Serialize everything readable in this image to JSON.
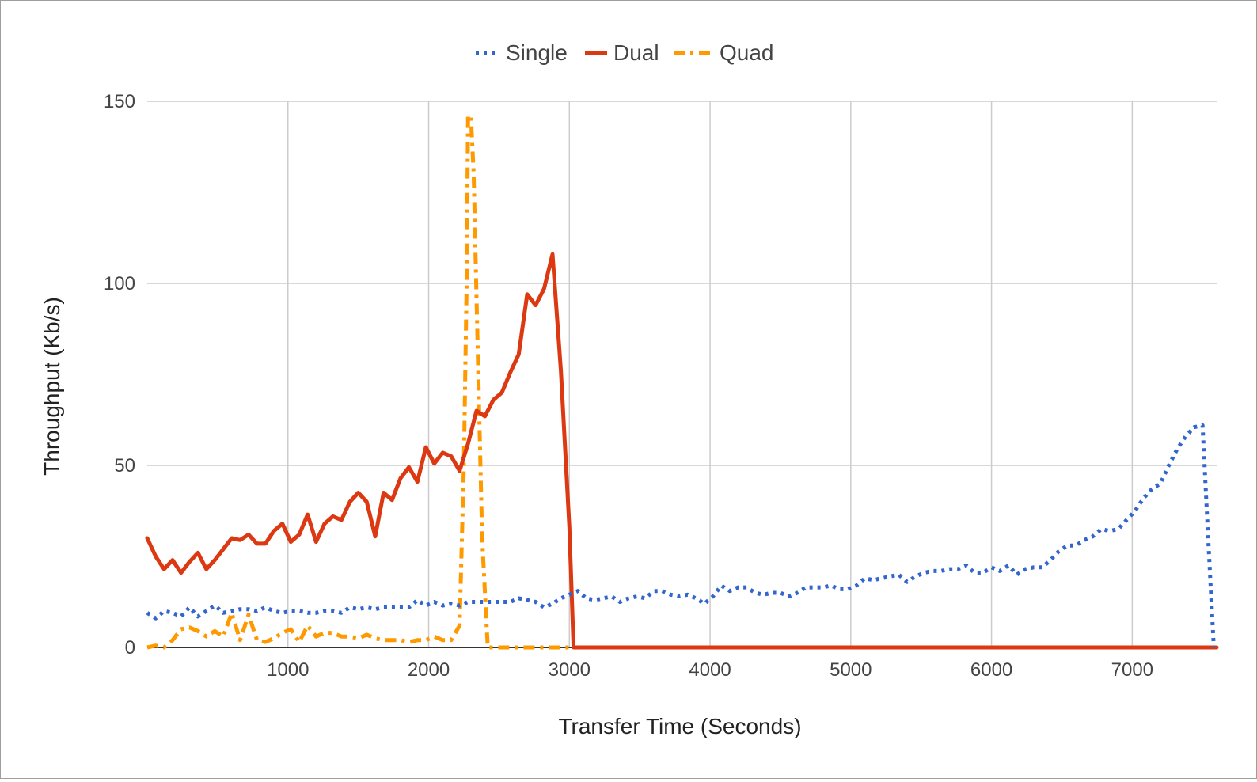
{
  "chart_data": {
    "type": "line",
    "title": "",
    "xlabel": "Transfer Time (Seconds)",
    "ylabel": "Throughput (Kb/s)",
    "xlim": [
      0,
      7600
    ],
    "ylim": [
      0,
      150
    ],
    "x_ticks": [
      1000,
      2000,
      3000,
      4000,
      5000,
      6000,
      7000
    ],
    "x_tick_labels": [
      "1000",
      "2000",
      "3000",
      "4000",
      "5000",
      "6000",
      "7000"
    ],
    "y_ticks": [
      0,
      50,
      100,
      150
    ],
    "y_tick_labels": [
      "0",
      "50",
      "100",
      "150"
    ],
    "grid": true,
    "legend_position": "top",
    "series": [
      {
        "name": "Single",
        "color": "#3366cc",
        "style": "dotted",
        "points": [
          [
            0,
            9.5
          ],
          [
            60,
            8
          ],
          [
            120,
            10
          ],
          [
            180,
            9.5
          ],
          [
            240,
            8.5
          ],
          [
            300,
            11
          ],
          [
            360,
            8.5
          ],
          [
            420,
            10
          ],
          [
            480,
            11.5
          ],
          [
            540,
            9.5
          ],
          [
            600,
            10
          ],
          [
            660,
            10.5
          ],
          [
            720,
            10.5
          ],
          [
            780,
            10
          ],
          [
            840,
            11
          ],
          [
            900,
            10
          ],
          [
            960,
            9.5
          ],
          [
            1020,
            10
          ],
          [
            1080,
            10
          ],
          [
            1140,
            9.5
          ],
          [
            1200,
            9.5
          ],
          [
            1260,
            10
          ],
          [
            1320,
            10
          ],
          [
            1380,
            9.5
          ],
          [
            1440,
            11
          ],
          [
            1500,
            10.5
          ],
          [
            1560,
            11
          ],
          [
            1620,
            10.5
          ],
          [
            1680,
            11
          ],
          [
            1740,
            11
          ],
          [
            1800,
            11
          ],
          [
            1860,
            11
          ],
          [
            1920,
            13
          ],
          [
            1980,
            11.5
          ],
          [
            2040,
            12.5
          ],
          [
            2100,
            11.5
          ],
          [
            2160,
            12
          ],
          [
            2220,
            11.5
          ],
          [
            2280,
            12.5
          ],
          [
            2340,
            12.5
          ],
          [
            2400,
            12.5
          ],
          [
            2460,
            12.5
          ],
          [
            2520,
            12.5
          ],
          [
            2580,
            12.5
          ],
          [
            2640,
            13.5
          ],
          [
            2700,
            13
          ],
          [
            2760,
            12.5
          ],
          [
            2820,
            11
          ],
          [
            2880,
            12
          ],
          [
            2940,
            13.5
          ],
          [
            3000,
            14.5
          ],
          [
            3060,
            15.5
          ],
          [
            3120,
            13.5
          ],
          [
            3180,
            13
          ],
          [
            3240,
            13.5
          ],
          [
            3300,
            14
          ],
          [
            3360,
            12.5
          ],
          [
            3420,
            13.5
          ],
          [
            3480,
            14
          ],
          [
            3540,
            13.5
          ],
          [
            3600,
            15.5
          ],
          [
            3660,
            15.5
          ],
          [
            3720,
            14.5
          ],
          [
            3780,
            14
          ],
          [
            3840,
            14.5
          ],
          [
            3900,
            13.5
          ],
          [
            3960,
            12
          ],
          [
            4020,
            14
          ],
          [
            4080,
            17
          ],
          [
            4140,
            15.5
          ],
          [
            4200,
            16.5
          ],
          [
            4260,
            16.5
          ],
          [
            4320,
            15
          ],
          [
            4380,
            14.5
          ],
          [
            4440,
            15
          ],
          [
            4500,
            15
          ],
          [
            4560,
            14
          ],
          [
            4620,
            15
          ],
          [
            4680,
            16.5
          ],
          [
            4740,
            16.5
          ],
          [
            4800,
            16.5
          ],
          [
            4860,
            17
          ],
          [
            4920,
            16
          ],
          [
            4980,
            16
          ],
          [
            5040,
            17
          ],
          [
            5100,
            19
          ],
          [
            5160,
            18.5
          ],
          [
            5220,
            19
          ],
          [
            5280,
            19.5
          ],
          [
            5340,
            20
          ],
          [
            5400,
            18
          ],
          [
            5460,
            19.5
          ],
          [
            5520,
            20.5
          ],
          [
            5580,
            21
          ],
          [
            5640,
            21
          ],
          [
            5700,
            21.5
          ],
          [
            5760,
            21.5
          ],
          [
            5820,
            22.5
          ],
          [
            5880,
            20.5
          ],
          [
            5940,
            20.5
          ],
          [
            6000,
            22
          ],
          [
            6060,
            21
          ],
          [
            6120,
            22.5
          ],
          [
            6180,
            20
          ],
          [
            6240,
            21.5
          ],
          [
            6300,
            22
          ],
          [
            6360,
            22
          ],
          [
            6420,
            24
          ],
          [
            6480,
            26.5
          ],
          [
            6540,
            28
          ],
          [
            6600,
            28
          ],
          [
            6660,
            29.5
          ],
          [
            6720,
            30.5
          ],
          [
            6780,
            32.5
          ],
          [
            6840,
            32
          ],
          [
            6900,
            32.5
          ],
          [
            6960,
            35
          ],
          [
            7020,
            37.5
          ],
          [
            7080,
            41
          ],
          [
            7140,
            43.5
          ],
          [
            7200,
            45
          ],
          [
            7260,
            50
          ],
          [
            7320,
            54.5
          ],
          [
            7380,
            58
          ],
          [
            7440,
            60.5
          ],
          [
            7500,
            61
          ],
          [
            7540,
            30
          ],
          [
            7580,
            0
          ]
        ]
      },
      {
        "name": "Dual",
        "color": "#dc3912",
        "style": "solid",
        "points": [
          [
            0,
            30
          ],
          [
            60,
            25
          ],
          [
            120,
            21.5
          ],
          [
            180,
            24
          ],
          [
            240,
            20.5
          ],
          [
            300,
            23.5
          ],
          [
            360,
            26
          ],
          [
            420,
            21.5
          ],
          [
            480,
            24
          ],
          [
            540,
            27
          ],
          [
            600,
            30
          ],
          [
            660,
            29.5
          ],
          [
            720,
            31
          ],
          [
            780,
            28.5
          ],
          [
            840,
            28.5
          ],
          [
            900,
            32
          ],
          [
            960,
            34
          ],
          [
            1020,
            29
          ],
          [
            1080,
            31
          ],
          [
            1140,
            36.5
          ],
          [
            1200,
            29
          ],
          [
            1260,
            34
          ],
          [
            1320,
            36
          ],
          [
            1380,
            35
          ],
          [
            1440,
            40
          ],
          [
            1500,
            42.5
          ],
          [
            1560,
            40
          ],
          [
            1620,
            30.5
          ],
          [
            1680,
            42.5
          ],
          [
            1740,
            40.5
          ],
          [
            1800,
            46.5
          ],
          [
            1860,
            49.5
          ],
          [
            1920,
            45.5
          ],
          [
            1980,
            55
          ],
          [
            2040,
            50.5
          ],
          [
            2100,
            53.5
          ],
          [
            2160,
            52.5
          ],
          [
            2220,
            48.5
          ],
          [
            2280,
            56
          ],
          [
            2340,
            65
          ],
          [
            2400,
            63.5
          ],
          [
            2460,
            68
          ],
          [
            2520,
            70
          ],
          [
            2580,
            75.5
          ],
          [
            2640,
            80.5
          ],
          [
            2700,
            97
          ],
          [
            2760,
            94
          ],
          [
            2820,
            98.5
          ],
          [
            2880,
            108
          ],
          [
            2940,
            76
          ],
          [
            3000,
            33
          ],
          [
            3030,
            0
          ],
          [
            3100,
            0
          ],
          [
            7600,
            0
          ]
        ]
      },
      {
        "name": "Quad",
        "color": "#ff9900",
        "style": "dash-dot",
        "points": [
          [
            0,
            0
          ],
          [
            60,
            0.5
          ],
          [
            120,
            0
          ],
          [
            180,
            2
          ],
          [
            240,
            5
          ],
          [
            300,
            5.5
          ],
          [
            360,
            4.5
          ],
          [
            420,
            3
          ],
          [
            480,
            4.5
          ],
          [
            540,
            3
          ],
          [
            600,
            9.5
          ],
          [
            660,
            2
          ],
          [
            720,
            9
          ],
          [
            780,
            2
          ],
          [
            840,
            1.5
          ],
          [
            900,
            2.5
          ],
          [
            960,
            4
          ],
          [
            1020,
            5
          ],
          [
            1080,
            1.5
          ],
          [
            1140,
            6
          ],
          [
            1200,
            3
          ],
          [
            1260,
            4
          ],
          [
            1320,
            4
          ],
          [
            1380,
            3
          ],
          [
            1440,
            3
          ],
          [
            1500,
            2.5
          ],
          [
            1560,
            3.5
          ],
          [
            1620,
            2.5
          ],
          [
            1680,
            2
          ],
          [
            1740,
            2
          ],
          [
            1800,
            2
          ],
          [
            1860,
            1.5
          ],
          [
            1920,
            2
          ],
          [
            1980,
            2
          ],
          [
            2040,
            3
          ],
          [
            2100,
            2
          ],
          [
            2160,
            2
          ],
          [
            2220,
            6
          ],
          [
            2250,
            50
          ],
          [
            2270,
            100
          ],
          [
            2280,
            146
          ],
          [
            2300,
            146
          ],
          [
            2320,
            130
          ],
          [
            2350,
            80
          ],
          [
            2380,
            30
          ],
          [
            2420,
            0
          ],
          [
            2480,
            0
          ],
          [
            7600,
            0
          ]
        ]
      }
    ]
  },
  "legend": [
    {
      "label": "Single",
      "color": "#3366cc",
      "style": "dotted"
    },
    {
      "label": "Dual",
      "color": "#dc3912",
      "style": "solid"
    },
    {
      "label": "Quad",
      "color": "#ff9900",
      "style": "dash-dot"
    }
  ],
  "colors": {
    "grid": "#cccccc",
    "axis": "#333333",
    "text": "#444444",
    "border": "#9e9e9e"
  }
}
